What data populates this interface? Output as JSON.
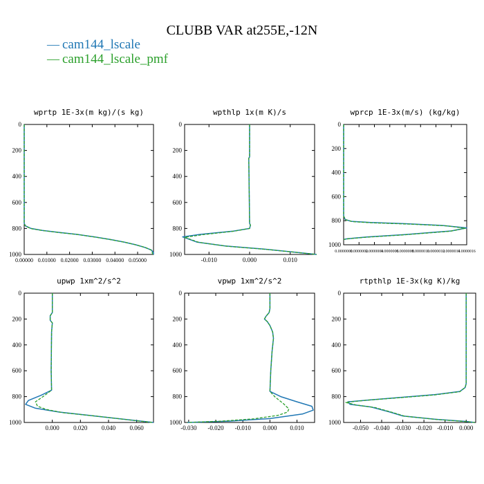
{
  "figure": {
    "title": "CLUBB VAR at255E,-12N",
    "legend": [
      {
        "label": "cam144_lscale",
        "color": "#1f77b4"
      },
      {
        "label": "cam144_lscale_pmf",
        "color": "#2ca02c"
      }
    ],
    "legend_dash": "—",
    "legend_location": "top-left"
  },
  "chart_data": [
    {
      "type": "line",
      "title": "wprtp  1E-3x(m kg)/(s kg)",
      "ylim": [
        1000,
        0
      ],
      "xlim": [
        0.0,
        0.057
      ],
      "yticks": [
        0,
        200,
        400,
        600,
        800,
        1000
      ],
      "xticks": [
        0.0,
        0.01,
        0.02,
        0.03,
        0.04,
        0.05
      ],
      "xtick_labels": [
        "0.00000",
        "0.01000",
        "0.02000",
        "0.03000",
        "0.04000",
        "0.05000"
      ],
      "xtick_size": 8,
      "series": [
        {
          "name": "cam144_lscale",
          "x": [
            0,
            0,
            0.0005,
            0.003,
            0.008,
            0.015,
            0.023,
            0.031,
            0.038,
            0.044,
            0.049,
            0.053,
            0.056,
            0.057,
            0.057
          ],
          "y": [
            0,
            760,
            780,
            800,
            815,
            830,
            845,
            865,
            885,
            905,
            925,
            945,
            965,
            985,
            1000
          ]
        },
        {
          "name": "cam144_lscale_pmf",
          "x": [
            0,
            0,
            0.0008,
            0.0035,
            0.0085,
            0.0155,
            0.0235,
            0.0315,
            0.0385,
            0.0445,
            0.0495,
            0.0535,
            0.056,
            0.0565,
            0.0565
          ],
          "y": [
            0,
            765,
            785,
            803,
            817,
            832,
            847,
            867,
            887,
            907,
            927,
            947,
            967,
            987,
            1000
          ]
        }
      ]
    },
    {
      "type": "line",
      "title": "wpthlp  1x(m K)/s",
      "ylim": [
        1000,
        0
      ],
      "xlim": [
        -0.016,
        0.016
      ],
      "yticks": [
        0,
        200,
        400,
        600,
        800,
        1000
      ],
      "xticks": [
        -0.01,
        0.0,
        0.01
      ],
      "xtick_labels": [
        "-0.010",
        "0.000",
        "0.010"
      ],
      "xtick_size": 9,
      "series": [
        {
          "name": "cam144_lscale",
          "x": [
            0,
            0,
            -0.0002,
            0,
            0.0002,
            0,
            -0.004,
            -0.012,
            -0.0165,
            -0.013,
            -0.006,
            0.004,
            0.012,
            0.0165
          ],
          "y": [
            0,
            250,
            260,
            760,
            775,
            800,
            820,
            845,
            865,
            905,
            935,
            960,
            985,
            1000
          ]
        },
        {
          "name": "cam144_lscale_pmf",
          "x": [
            0,
            0,
            -0.0002,
            0,
            0.0002,
            0,
            -0.004,
            -0.0115,
            -0.016,
            -0.0125,
            -0.0055,
            0.0045,
            0.0125,
            0.0165
          ],
          "y": [
            0,
            250,
            260,
            760,
            775,
            800,
            822,
            848,
            868,
            907,
            937,
            962,
            987,
            1000
          ]
        }
      ]
    },
    {
      "type": "line",
      "title": "wprcp  1E-3x(m/s) (kg/kg)",
      "ylim": [
        1000,
        0
      ],
      "xlim": [
        0.0,
        1.6e-06
      ],
      "yticks": [
        0,
        200,
        400,
        600,
        800,
        1000
      ],
      "xticks": [
        0.0,
        2e-07,
        4e-07,
        6e-07,
        8e-07,
        1e-06,
        1.2e-06,
        1.4e-06,
        1.6e-06
      ],
      "xtick_labels": [
        "0.0000000",
        "0.0000002",
        "0.0000004",
        "0.0000006",
        "0.0000008",
        "0.0000010",
        "0.0000012",
        "0.0000014",
        "0.0000016"
      ],
      "xtick_size": 6,
      "series": [
        {
          "name": "cam144_lscale",
          "x": [
            0,
            0,
            2e-08,
            1e-07,
            3.5e-07,
            8e-07,
            1.3e-06,
            1.6e-06,
            1.4e-06,
            8e-07,
            3e-07,
            5e-08,
            0
          ],
          "y": [
            0,
            760,
            790,
            805,
            815,
            825,
            840,
            860,
            885,
            915,
            935,
            950,
            955
          ]
        },
        {
          "name": "cam144_lscale_pmf",
          "x": [
            0,
            0,
            3e-08,
            1.2e-07,
            3.8e-07,
            8.5e-07,
            1.35e-06,
            1.58e-06,
            1.38e-06,
            7.8e-07,
            2.8e-07,
            4e-08,
            0
          ],
          "y": [
            0,
            765,
            793,
            808,
            818,
            828,
            843,
            863,
            888,
            918,
            938,
            952,
            957
          ]
        }
      ]
    },
    {
      "type": "line",
      "title": "upwp  1xm^2/s^2",
      "ylim": [
        1000,
        0
      ],
      "xlim": [
        -0.02,
        0.072
      ],
      "yticks": [
        0,
        200,
        400,
        600,
        800,
        1000
      ],
      "xticks": [
        0.0,
        0.02,
        0.04,
        0.06
      ],
      "xtick_labels": [
        "0.000",
        "0.020",
        "0.040",
        "0.060"
      ],
      "xtick_size": 9,
      "series": [
        {
          "name": "cam144_lscale",
          "x": [
            0,
            0,
            -0.0015,
            -0.0015,
            0,
            -0.0005,
            -0.0008,
            -0.0005,
            -0.008,
            -0.017,
            -0.019,
            -0.012,
            0.005,
            0.03,
            0.055,
            0.072
          ],
          "y": [
            0,
            150,
            175,
            210,
            230,
            300,
            600,
            750,
            790,
            830,
            860,
            890,
            920,
            950,
            980,
            1000
          ]
        },
        {
          "name": "cam144_lscale_pmf",
          "x": [
            0,
            0,
            -0.0015,
            -0.0015,
            0,
            -0.0005,
            -0.0008,
            -0.0005,
            -0.006,
            -0.012,
            -0.0105,
            -0.004,
            0.008,
            0.032,
            0.056,
            0.071
          ],
          "y": [
            0,
            150,
            175,
            210,
            230,
            300,
            600,
            750,
            795,
            840,
            875,
            900,
            925,
            952,
            982,
            1000
          ]
        }
      ]
    },
    {
      "type": "line",
      "title": "vpwp  1xm^2/s^2",
      "ylim": [
        1000,
        0
      ],
      "xlim": [
        -0.0315,
        0.0165
      ],
      "yticks": [
        0,
        200,
        400,
        600,
        800,
        1000
      ],
      "xticks": [
        -0.03,
        -0.02,
        -0.01,
        0.0,
        0.01
      ],
      "xtick_labels": [
        "-0.030",
        "-0.020",
        "-0.010",
        "0.000",
        "0.010"
      ],
      "xtick_size": 9,
      "series": [
        {
          "name": "cam144_lscale",
          "x": [
            0,
            0,
            -0.0003,
            -0.0015,
            -0.002,
            -0.001,
            0,
            0.001,
            0.0013,
            0.0008,
            0.0003,
            0,
            0.004,
            0.01,
            0.0155,
            0.016,
            0.012,
            0,
            -0.015,
            -0.0305
          ],
          "y": [
            0,
            120,
            150,
            180,
            200,
            220,
            250,
            300,
            350,
            450,
            600,
            760,
            800,
            840,
            875,
            905,
            935,
            970,
            990,
            1000
          ]
        },
        {
          "name": "cam144_lscale_pmf",
          "x": [
            0,
            0,
            -0.0003,
            -0.0015,
            -0.002,
            -0.001,
            0,
            0.001,
            0.0013,
            0.0008,
            0.0003,
            0,
            0.002,
            0.005,
            0.007,
            0.0065,
            0.003,
            -0.006,
            -0.018,
            -0.0305
          ],
          "y": [
            0,
            120,
            150,
            180,
            200,
            220,
            250,
            300,
            350,
            450,
            600,
            760,
            805,
            855,
            895,
            920,
            945,
            972,
            990,
            1000
          ]
        }
      ]
    },
    {
      "type": "line",
      "title": "rtpthlp  1E-3x(kg K)/kg",
      "ylim": [
        1000,
        0
      ],
      "xlim": [
        -0.058,
        0.0045
      ],
      "yticks": [
        0,
        200,
        400,
        600,
        800,
        1000
      ],
      "xticks": [
        -0.05,
        -0.04,
        -0.03,
        -0.02,
        -0.01,
        0.0
      ],
      "xtick_labels": [
        "-0.050",
        "-0.040",
        "-0.030",
        "-0.020",
        "-0.010",
        "0.000"
      ],
      "xtick_size": 9,
      "series": [
        {
          "name": "cam144_lscale",
          "x": [
            0,
            0,
            -0.0005,
            -0.003,
            -0.015,
            -0.03,
            -0.045,
            -0.056,
            -0.055,
            -0.045,
            -0.036,
            -0.03,
            -0.015,
            0,
            0.004
          ],
          "y": [
            0,
            700,
            730,
            760,
            785,
            805,
            825,
            840,
            860,
            880,
            920,
            950,
            975,
            992,
            1000
          ]
        },
        {
          "name": "cam144_lscale_pmf",
          "x": [
            0,
            0,
            -0.0005,
            -0.003,
            -0.015,
            -0.031,
            -0.047,
            -0.057,
            -0.052,
            -0.043,
            -0.035,
            -0.029,
            -0.014,
            0,
            0.004
          ],
          "y": [
            0,
            700,
            730,
            762,
            787,
            808,
            828,
            845,
            865,
            885,
            922,
            952,
            977,
            993,
            1000
          ]
        }
      ]
    }
  ]
}
